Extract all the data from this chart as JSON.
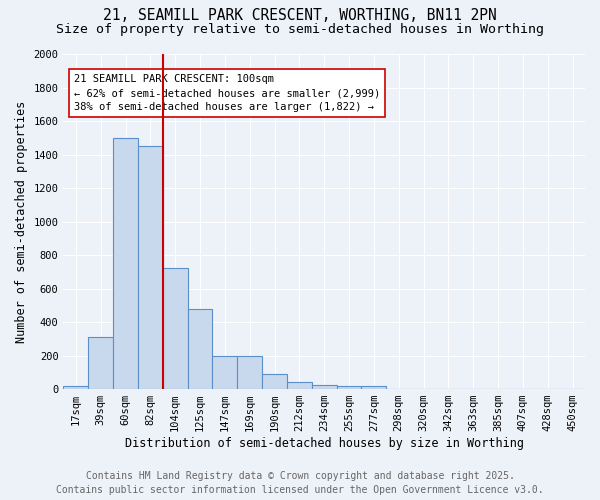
{
  "title_line1": "21, SEAMILL PARK CRESCENT, WORTHING, BN11 2PN",
  "title_line2": "Size of property relative to semi-detached houses in Worthing",
  "xlabel": "Distribution of semi-detached houses by size in Worthing",
  "ylabel": "Number of semi-detached properties",
  "bar_color": "#c9d9ed",
  "bar_edge_color": "#5b8fc9",
  "categories": [
    "17sqm",
    "39sqm",
    "60sqm",
    "82sqm",
    "104sqm",
    "125sqm",
    "147sqm",
    "169sqm",
    "190sqm",
    "212sqm",
    "234sqm",
    "255sqm",
    "277sqm",
    "298sqm",
    "320sqm",
    "342sqm",
    "363sqm",
    "385sqm",
    "407sqm",
    "428sqm",
    "450sqm"
  ],
  "values": [
    20,
    310,
    1500,
    1450,
    720,
    480,
    195,
    200,
    90,
    45,
    25,
    20,
    20,
    0,
    0,
    0,
    0,
    0,
    0,
    0,
    0
  ],
  "vline_index": 4,
  "vline_color": "#cc0000",
  "annotation_title": "21 SEAMILL PARK CRESCENT: 100sqm",
  "annotation_line1": "← 62% of semi-detached houses are smaller (2,999)",
  "annotation_line2": "38% of semi-detached houses are larger (1,822) →",
  "annotation_box_color": "#ffffff",
  "annotation_box_edge": "#cc0000",
  "ylim": [
    0,
    2000
  ],
  "yticks": [
    0,
    200,
    400,
    600,
    800,
    1000,
    1200,
    1400,
    1600,
    1800,
    2000
  ],
  "footer_line1": "Contains HM Land Registry data © Crown copyright and database right 2025.",
  "footer_line2": "Contains public sector information licensed under the Open Government Licence v3.0.",
  "background_color": "#edf1f8",
  "grid_color": "#ffffff",
  "title_fontsize": 10.5,
  "subtitle_fontsize": 9.5,
  "axis_label_fontsize": 8.5,
  "tick_fontsize": 7.5,
  "annotation_fontsize": 7.5,
  "footer_fontsize": 7
}
